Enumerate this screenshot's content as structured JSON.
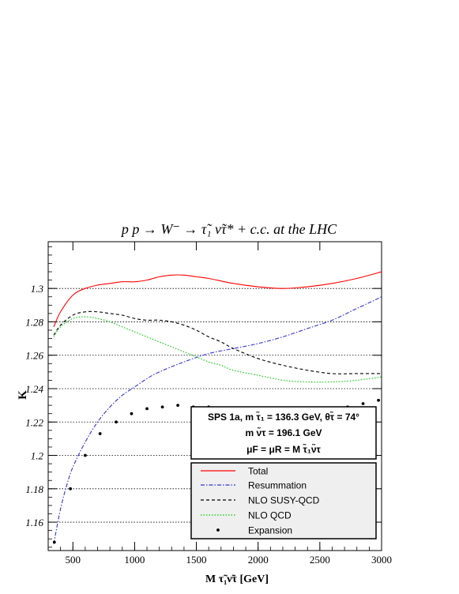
{
  "chart_data": {
    "type": "line",
    "title": "p p → W⁻ → τ̃₁ ν̃τ* + c.c. at the LHC",
    "xlabel": "M τ̃₁ν̃τ [GeV]",
    "ylabel": "K",
    "xlim": [
      300,
      3000
    ],
    "ylim": [
      1.143,
      1.328
    ],
    "x_ticks": [
      500,
      1000,
      1500,
      2000,
      2500,
      3000
    ],
    "y_ticks": [
      1.16,
      1.18,
      1.2,
      1.22,
      1.24,
      1.26,
      1.28,
      1.3
    ],
    "grid": "horizontal dotted lines at major y ticks",
    "info_box": {
      "line1": "SPS 1a, m τ̃₁ = 136.3 GeV, θτ̃ = 74°",
      "line2": "m ν̃τ = 196.1 GeV",
      "line3": "μF = μR = M τ̃₁ν̃τ"
    },
    "legend_placement": "bottom-right",
    "series": [
      {
        "name": "Total",
        "color": "#ff0000",
        "style": "solid",
        "x": [
          345,
          400,
          500,
          600,
          700,
          800,
          900,
          1000,
          1100,
          1150,
          1200,
          1300,
          1400,
          1500,
          1600,
          1800,
          2000,
          2200,
          2400,
          2600,
          2800,
          3000
        ],
        "y": [
          1.277,
          1.286,
          1.296,
          1.3,
          1.302,
          1.303,
          1.304,
          1.304,
          1.305,
          1.306,
          1.307,
          1.308,
          1.308,
          1.307,
          1.306,
          1.303,
          1.301,
          1.3,
          1.301,
          1.303,
          1.306,
          1.31
        ]
      },
      {
        "name": "Resummation",
        "color": "#3333dd",
        "style": "dashdot",
        "x": [
          345,
          400,
          450,
          500,
          600,
          700,
          800,
          900,
          1000,
          1100,
          1200,
          1400,
          1600,
          1800,
          2000,
          2200,
          2400,
          2600,
          2800,
          3000
        ],
        "y": [
          1.147,
          1.168,
          1.182,
          1.193,
          1.208,
          1.22,
          1.229,
          1.236,
          1.241,
          1.246,
          1.25,
          1.256,
          1.261,
          1.264,
          1.267,
          1.271,
          1.276,
          1.281,
          1.288,
          1.295
        ]
      },
      {
        "name": "NLO SUSY-QCD",
        "color": "#000000",
        "style": "dashed",
        "x": [
          345,
          400,
          500,
          600,
          700,
          800,
          900,
          1000,
          1100,
          1200,
          1300,
          1400,
          1500,
          1600,
          1700,
          1800,
          2000,
          2200,
          2400,
          2600,
          2800,
          3000
        ],
        "y": [
          1.272,
          1.278,
          1.284,
          1.286,
          1.286,
          1.285,
          1.284,
          1.282,
          1.281,
          1.281,
          1.28,
          1.278,
          1.275,
          1.271,
          1.268,
          1.264,
          1.258,
          1.254,
          1.251,
          1.249,
          1.249,
          1.249
        ]
      },
      {
        "name": "NLO QCD",
        "color": "#00cc00",
        "style": "dotted",
        "x": [
          345,
          400,
          500,
          600,
          700,
          800,
          900,
          1000,
          1100,
          1200,
          1300,
          1400,
          1500,
          1600,
          1700,
          1800,
          2000,
          2200,
          2400,
          2600,
          2800,
          3000
        ],
        "y": [
          1.271,
          1.277,
          1.282,
          1.283,
          1.282,
          1.28,
          1.277,
          1.274,
          1.271,
          1.268,
          1.265,
          1.262,
          1.259,
          1.256,
          1.254,
          1.251,
          1.248,
          1.245,
          1.244,
          1.244,
          1.245,
          1.247
        ]
      },
      {
        "name": "Expansion",
        "color": "#000000",
        "style": "markers",
        "x": [
          350,
          480,
          600,
          720,
          850,
          975,
          1100,
          1225,
          1350,
          1475,
          1600,
          1725,
          1850,
          1975,
          2100,
          2225,
          2350,
          2475,
          2600,
          2725,
          2850,
          2975
        ],
        "y": [
          1.148,
          1.18,
          1.2,
          1.213,
          1.22,
          1.225,
          1.228,
          1.229,
          1.23,
          1.229,
          1.229,
          1.228,
          1.228,
          1.227,
          1.227,
          1.227,
          1.227,
          1.227,
          1.228,
          1.229,
          1.231,
          1.233
        ]
      }
    ]
  }
}
